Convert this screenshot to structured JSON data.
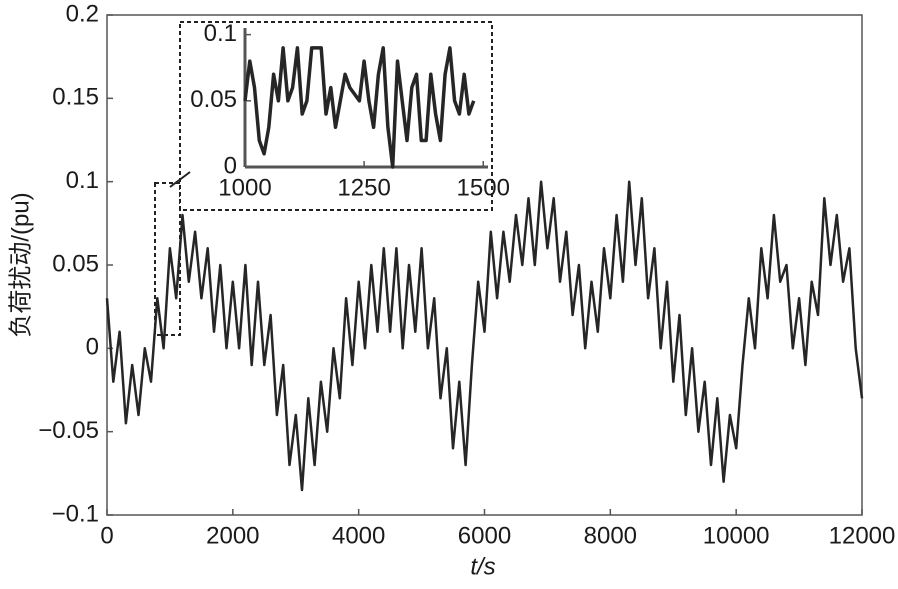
{
  "chart_data": [
    {
      "type": "line",
      "xlabel": "t/s",
      "ylabel": "负荷扰动/(pu)",
      "xlim": [
        0,
        12000
      ],
      "ylim": [
        -0.1,
        0.2
      ],
      "xticks": [
        0,
        2000,
        4000,
        6000,
        8000,
        10000,
        12000
      ],
      "yticks": [
        {
          "value": -0.1,
          "label": "−0.1"
        },
        {
          "value": -0.05,
          "label": "−0.05"
        },
        0,
        0.05,
        0.1,
        0.15,
        0.2
      ],
      "x": [
        0,
        100,
        200,
        300,
        400,
        500,
        600,
        700,
        800,
        900,
        1000,
        1100,
        1200,
        1300,
        1400,
        1500,
        1600,
        1700,
        1800,
        1900,
        2000,
        2100,
        2200,
        2300,
        2400,
        2500,
        2600,
        2700,
        2800,
        2900,
        3000,
        3100,
        3200,
        3300,
        3400,
        3500,
        3600,
        3700,
        3800,
        3900,
        4000,
        4100,
        4200,
        4300,
        4400,
        4500,
        4600,
        4700,
        4800,
        4900,
        5000,
        5100,
        5200,
        5300,
        5400,
        5500,
        5600,
        5700,
        5800,
        5900,
        6000,
        6100,
        6200,
        6300,
        6400,
        6500,
        6600,
        6700,
        6800,
        6900,
        7000,
        7100,
        7200,
        7300,
        7400,
        7500,
        7600,
        7700,
        7800,
        7900,
        8000,
        8100,
        8200,
        8300,
        8400,
        8500,
        8600,
        8700,
        8800,
        8900,
        9000,
        9100,
        9200,
        9300,
        9400,
        9500,
        9600,
        9700,
        9800,
        9900,
        10000,
        10100,
        10200,
        10300,
        10400,
        10500,
        10600,
        10700,
        10800,
        10900,
        11000,
        11100,
        11200,
        11300,
        11400,
        11500,
        11600,
        11700,
        11800,
        11900,
        12000
      ],
      "series": [
        {
          "color": "#262626",
          "values": [
            0.03,
            -0.02,
            0.01,
            -0.045,
            -0.01,
            -0.04,
            0.0,
            -0.02,
            0.03,
            0.0,
            0.06,
            0.03,
            0.08,
            0.04,
            0.07,
            0.03,
            0.06,
            0.01,
            0.05,
            0.0,
            0.04,
            0.0,
            0.05,
            -0.01,
            0.04,
            -0.01,
            0.02,
            -0.04,
            -0.01,
            -0.07,
            -0.04,
            -0.085,
            -0.03,
            -0.07,
            -0.02,
            -0.05,
            0.0,
            -0.03,
            0.03,
            -0.01,
            0.04,
            0.0,
            0.05,
            0.01,
            0.06,
            0.01,
            0.06,
            0.0,
            0.05,
            0.01,
            0.06,
            0.0,
            0.03,
            -0.03,
            0.0,
            -0.06,
            -0.02,
            -0.07,
            -0.01,
            0.04,
            0.01,
            0.07,
            0.03,
            0.07,
            0.04,
            0.08,
            0.05,
            0.09,
            0.05,
            0.1,
            0.06,
            0.09,
            0.04,
            0.07,
            0.02,
            0.05,
            0.0,
            0.04,
            0.01,
            0.06,
            0.03,
            0.08,
            0.04,
            0.1,
            0.05,
            0.09,
            0.03,
            0.06,
            0.0,
            0.04,
            -0.02,
            0.02,
            -0.04,
            0.0,
            -0.05,
            -0.02,
            -0.07,
            -0.03,
            -0.08,
            -0.04,
            -0.06,
            -0.01,
            0.03,
            0.0,
            0.06,
            0.03,
            0.08,
            0.04,
            0.05,
            0.0,
            0.03,
            -0.01,
            0.04,
            0.02,
            0.09,
            0.05,
            0.08,
            0.04,
            0.06,
            0.0,
            -0.03
          ]
        }
      ]
    },
    {
      "type": "line",
      "xlim": [
        1000,
        1510
      ],
      "ylim": [
        0,
        0.105
      ],
      "xticks": [
        1000,
        1250,
        1500
      ],
      "yticks": [
        0,
        0.05,
        0.1
      ],
      "x": [
        1000,
        1010,
        1020,
        1030,
        1040,
        1050,
        1060,
        1070,
        1080,
        1090,
        1100,
        1110,
        1120,
        1130,
        1140,
        1150,
        1160,
        1170,
        1180,
        1190,
        1200,
        1210,
        1220,
        1230,
        1240,
        1250,
        1260,
        1270,
        1280,
        1290,
        1300,
        1310,
        1320,
        1330,
        1340,
        1350,
        1360,
        1370,
        1380,
        1390,
        1400,
        1410,
        1420,
        1430,
        1440,
        1450,
        1460,
        1470,
        1480
      ],
      "series": [
        {
          "color": "#262626",
          "values": [
            0.05,
            0.08,
            0.06,
            0.02,
            0.01,
            0.03,
            0.07,
            0.05,
            0.09,
            0.05,
            0.06,
            0.09,
            0.04,
            0.05,
            0.09,
            0.09,
            0.09,
            0.04,
            0.06,
            0.03,
            0.05,
            0.07,
            0.06,
            0.055,
            0.05,
            0.08,
            0.05,
            0.03,
            0.07,
            0.09,
            0.03,
            0.0,
            0.08,
            0.05,
            0.02,
            0.06,
            0.07,
            0.02,
            0.02,
            0.07,
            0.04,
            0.02,
            0.07,
            0.09,
            0.05,
            0.04,
            0.07,
            0.04,
            0.05
          ]
        }
      ]
    }
  ]
}
